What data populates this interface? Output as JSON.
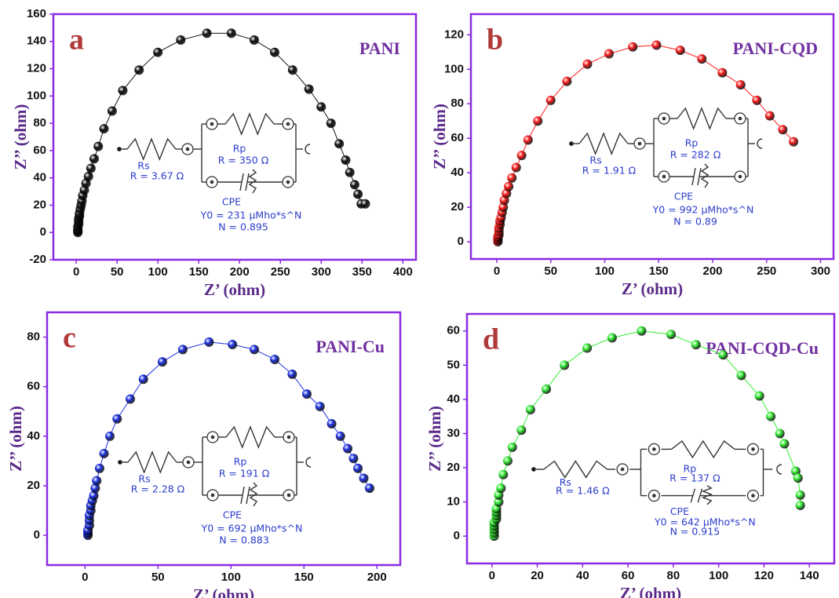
{
  "chart_data": [
    {
      "type": "scatter",
      "panel_label": "a",
      "x_label": "Z’ (ohm)",
      "y_label": "Z’’ (ohm)",
      "xlim": [
        -28,
        416
      ],
      "ylim": [
        -20,
        160
      ],
      "xticks": [
        0,
        50,
        100,
        150,
        200,
        250,
        300,
        350,
        400
      ],
      "yticks": [
        -20,
        0,
        20,
        40,
        60,
        80,
        100,
        120,
        140,
        160
      ],
      "x": [
        2,
        2,
        2,
        2,
        3,
        3,
        3,
        4,
        4,
        5,
        6,
        7,
        8,
        10,
        12,
        15,
        18,
        22,
        27,
        34,
        44,
        57,
        77,
        100,
        128,
        160,
        190,
        218,
        243,
        265,
        285,
        300,
        312,
        322,
        330,
        335,
        341,
        345,
        349,
        354
      ],
      "series": [
        {
          "name": "PANI",
          "color": "#111111",
          "values": [
            0,
            1,
            2,
            4,
            6,
            8,
            10,
            12,
            14,
            17,
            20,
            23,
            27,
            31,
            36,
            41,
            47,
            54,
            63,
            76,
            89,
            104,
            119,
            132,
            141,
            146,
            146,
            141,
            132,
            119,
            105,
            92,
            80,
            65,
            53,
            44,
            35,
            28,
            21,
            21
          ]
        }
      ],
      "circuit": {
        "rs_name": "Rs",
        "rs_value": "R = 3.67 Ω",
        "rp_name": "Rp",
        "rp_value": "R = 350 Ω",
        "cpe_name": "CPE",
        "y0": "Y0 = 231 μMho*s^N",
        "n": "N = 0.895"
      }
    },
    {
      "type": "scatter",
      "panel_label": "b",
      "x_label": "Z’ (ohm)",
      "y_label": "Z’’ (ohm)",
      "xlim": [
        -24,
        312
      ],
      "ylim": [
        -10,
        132
      ],
      "xticks": [
        0,
        50,
        100,
        150,
        200,
        250,
        300
      ],
      "yticks": [
        0,
        20,
        40,
        60,
        80,
        100,
        120
      ],
      "x": [
        1,
        1,
        1,
        1,
        2,
        2,
        2,
        3,
        3,
        4,
        5,
        6,
        7,
        9,
        11,
        14,
        18,
        23,
        29,
        38,
        50,
        65,
        84,
        104,
        126,
        148,
        170,
        190,
        209,
        226,
        241,
        253,
        265,
        275
      ],
      "series": [
        {
          "name": "PANI-CQD",
          "color": "#ff1a1a",
          "values": [
            0,
            1,
            2,
            3,
            4,
            6,
            8,
            10,
            12,
            14,
            17,
            20,
            24,
            28,
            32,
            37,
            43,
            50,
            59,
            70,
            82,
            93,
            103,
            109,
            113,
            114,
            111,
            106,
            98,
            91,
            82,
            73,
            65,
            58
          ]
        }
      ],
      "circuit": {
        "rs_name": "Rs",
        "rs_value": "R = 1.91 Ω",
        "rp_name": "Rp",
        "rp_value": "R = 282 Ω",
        "cpe_name": "CPE",
        "y0": "Y0 = 992 μMho*s^N",
        "n": "N = 0.89"
      }
    },
    {
      "type": "scatter",
      "panel_label": "c",
      "x_label": "Z’ (ohm)",
      "y_label": "Z’’ (ohm)",
      "xlim": [
        -26,
        216
      ],
      "ylim": [
        -12,
        90
      ],
      "xticks": [
        0,
        50,
        100,
        150,
        200
      ],
      "yticks": [
        0,
        20,
        40,
        60,
        80
      ],
      "x": [
        2,
        2,
        2,
        3,
        3,
        3,
        4,
        4,
        5,
        6,
        7,
        8,
        10,
        13,
        17,
        22,
        31,
        40,
        53,
        67,
        85,
        101,
        116,
        130,
        142,
        152,
        161,
        169,
        175,
        180,
        184,
        187,
        191,
        195
      ],
      "series": [
        {
          "name": "PANI-Cu",
          "color": "#1a2fe0",
          "values": [
            0,
            1,
            2,
            4,
            6,
            8,
            10,
            12,
            14,
            16,
            19,
            22,
            27,
            33,
            40,
            47,
            55,
            63,
            70,
            75,
            78,
            77,
            75,
            71,
            65,
            57,
            52,
            45,
            40,
            35,
            31,
            27,
            23,
            19
          ]
        }
      ],
      "circuit": {
        "rs_name": "Rs",
        "rs_value": "R = 2.28 Ω",
        "rp_name": "Rp",
        "rp_value": "R = 191 Ω",
        "cpe_name": "CPE",
        "y0": "Y0 = 692 μMho*s^N",
        "n": "N = 0.883"
      }
    },
    {
      "type": "scatter",
      "panel_label": "d",
      "x_label": "Z’ (ohm)",
      "y_label": "Z’’ (ohm)",
      "xlim": [
        -11,
        151
      ],
      "ylim": [
        -8,
        65
      ],
      "xticks": [
        0,
        20,
        40,
        60,
        80,
        100,
        120,
        140
      ],
      "yticks": [
        0,
        10,
        20,
        30,
        40,
        50,
        60
      ],
      "x": [
        1,
        1,
        1,
        1,
        1,
        2,
        2,
        2,
        2,
        3,
        3,
        4,
        5,
        7,
        9,
        13,
        17,
        24,
        32,
        42,
        53,
        66,
        79,
        90,
        102,
        110,
        118,
        123,
        127,
        129,
        134,
        135,
        136,
        136
      ],
      "series": [
        {
          "name": "PANI-CQD-Cu",
          "color": "#33ee33",
          "values": [
            0,
            1,
            2,
            3,
            4,
            5,
            6,
            7,
            8,
            10,
            12,
            14,
            18,
            22,
            26,
            31,
            37,
            43,
            50,
            55,
            58,
            60,
            59,
            56,
            53,
            47,
            41,
            35,
            30,
            27,
            19,
            17,
            12,
            9
          ]
        }
      ],
      "circuit": {
        "rs_name": "Rs",
        "rs_value": "R = 1.46 Ω",
        "rp_name": "Rp",
        "rp_value": "R = 137 Ω",
        "cpe_name": "CPE",
        "y0": "Y0 = 642 μMho*s^N",
        "n": "N = 0.915"
      }
    }
  ]
}
